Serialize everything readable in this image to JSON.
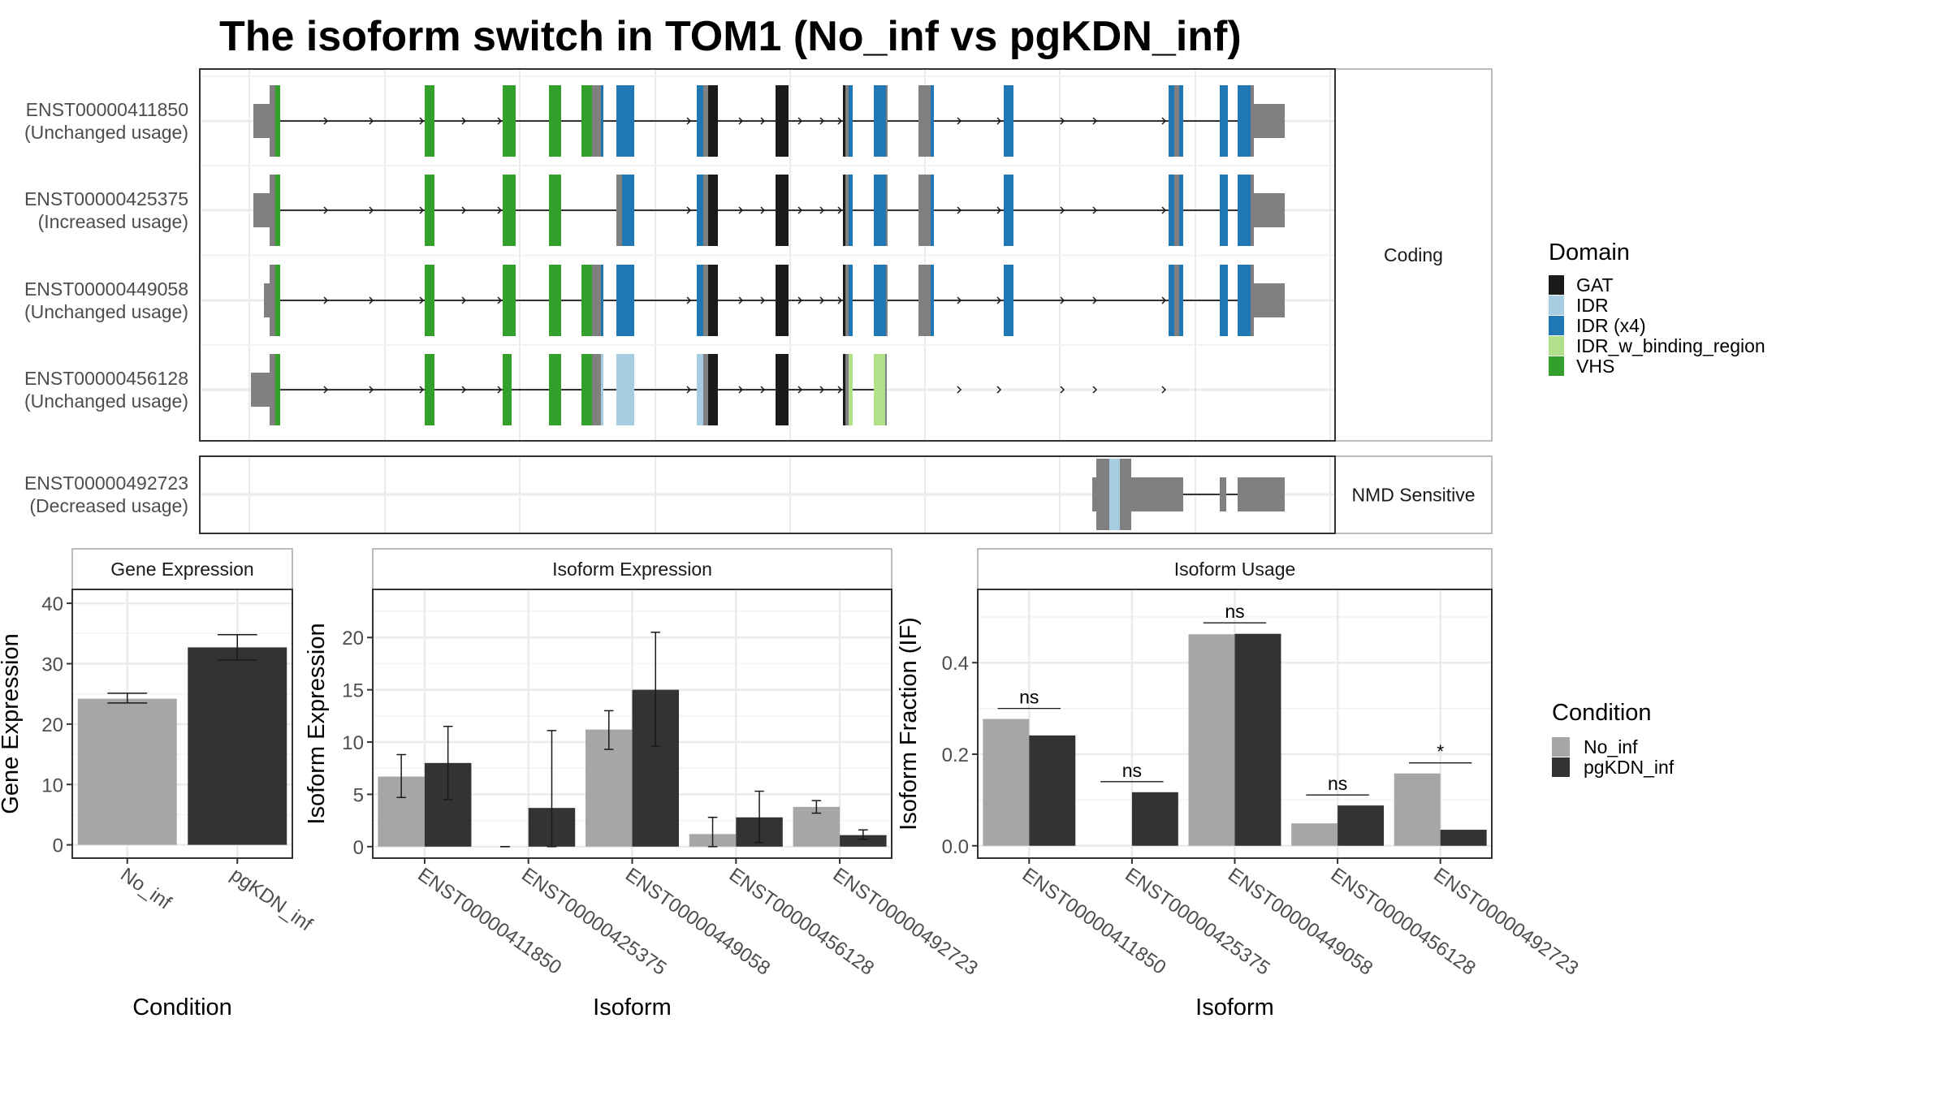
{
  "title": "The isoform switch in TOM1 (No_inf vs pgKDN_inf)",
  "chart_data": [
    {
      "type": "transcript_structure",
      "facets": [
        {
          "label": "Coding",
          "transcripts": [
            "ENST00000411850",
            "ENST00000425375",
            "ENST00000449058",
            "ENST00000456128"
          ]
        },
        {
          "label": "NMD Sensitive",
          "transcripts": [
            "ENST00000492723"
          ]
        }
      ],
      "transcripts": [
        {
          "id": "ENST00000411850",
          "status": "(Unchanged usage)",
          "facet": "Coding"
        },
        {
          "id": "ENST00000425375",
          "status": "(Increased usage)",
          "facet": "Coding"
        },
        {
          "id": "ENST00000449058",
          "status": "(Unchanged usage)",
          "facet": "Coding"
        },
        {
          "id": "ENST00000456128",
          "status": "(Unchanged usage)",
          "facet": "Coding"
        },
        {
          "id": "ENST00000492723",
          "status": "(Decreased usage)",
          "facet": "NMD Sensitive"
        }
      ],
      "legend": {
        "title": "Domain",
        "entries": [
          {
            "label": "GAT",
            "color": "#1a1a1a"
          },
          {
            "label": "IDR",
            "color": "#a6cee3"
          },
          {
            "label": "IDR (x4)",
            "color": "#1f78b4"
          },
          {
            "label": "IDR_w_binding_region",
            "color": "#b2df8a"
          },
          {
            "label": "VHS",
            "color": "#33a02c"
          }
        ]
      },
      "colors": {
        "utr": "#808080",
        "noncoding": "#808080",
        "intron": "#1a1a1a"
      }
    },
    {
      "type": "bar",
      "title": "Gene Expression",
      "xlabel": "Condition",
      "ylabel": "Gene Expression",
      "categories": [
        "No_inf",
        "pgKDN_inf"
      ],
      "values": [
        24.2,
        32.7
      ],
      "errors": [
        [
          23.5,
          25.1
        ],
        [
          30.6,
          34.8
        ]
      ],
      "colors": [
        "#a6a6a6",
        "#333333"
      ],
      "yticks": [
        0,
        10,
        20,
        30,
        40
      ],
      "ylim": [
        -2.2,
        42.3
      ],
      "grid": true
    },
    {
      "type": "bar",
      "title": "Isoform Expression",
      "xlabel": "Isoform",
      "ylabel": "Isoform Expression",
      "categories": [
        "ENST00000411850",
        "ENST00000425375",
        "ENST00000449058",
        "ENST00000456128",
        "ENST00000492723"
      ],
      "series": [
        {
          "name": "No_inf",
          "color": "#a6a6a6",
          "values": [
            6.7,
            0.0,
            11.2,
            1.2,
            3.8
          ],
          "errors": [
            [
              4.7,
              8.8
            ],
            [
              0.0,
              0.0
            ],
            [
              9.3,
              13.0
            ],
            [
              0.0,
              2.8
            ],
            [
              3.2,
              4.4
            ]
          ]
        },
        {
          "name": "pgKDN_inf",
          "color": "#333333",
          "values": [
            8.0,
            3.7,
            15.0,
            2.8,
            1.1
          ],
          "errors": [
            [
              4.5,
              11.5
            ],
            [
              0.0,
              11.1
            ],
            [
              9.6,
              20.5
            ],
            [
              0.4,
              5.3
            ],
            [
              0.7,
              1.6
            ]
          ]
        }
      ],
      "yticks": [
        0,
        5,
        10,
        15,
        20
      ],
      "ylim": [
        -1.1,
        24.6
      ],
      "grid": true
    },
    {
      "type": "bar",
      "title": "Isoform Usage",
      "xlabel": "Isoform",
      "ylabel": "Isoform Fraction (IF)",
      "categories": [
        "ENST00000411850",
        "ENST00000425375",
        "ENST00000449058",
        "ENST00000456128",
        "ENST00000492723"
      ],
      "series": [
        {
          "name": "No_inf",
          "color": "#a6a6a6",
          "values": [
            0.277,
            0.0,
            0.462,
            0.049,
            0.158
          ]
        },
        {
          "name": "pgKDN_inf",
          "color": "#333333",
          "values": [
            0.241,
            0.117,
            0.463,
            0.088,
            0.035
          ]
        }
      ],
      "significance": [
        {
          "label": "ns",
          "y": 0.3
        },
        {
          "label": "ns",
          "y": 0.14
        },
        {
          "label": "ns",
          "y": 0.487
        },
        {
          "label": "ns",
          "y": 0.111
        },
        {
          "label": "*",
          "y": 0.181
        }
      ],
      "yticks": [
        0.0,
        0.2,
        0.4
      ],
      "ytick_labels": [
        "0.0",
        "0.2",
        "0.4"
      ],
      "ylim": [
        -0.027,
        0.56
      ],
      "grid": true
    }
  ],
  "condition_legend": {
    "title": "Condition",
    "entries": [
      {
        "label": "No_inf",
        "color": "#a6a6a6"
      },
      {
        "label": "pgKDN_inf",
        "color": "#333333"
      }
    ]
  }
}
